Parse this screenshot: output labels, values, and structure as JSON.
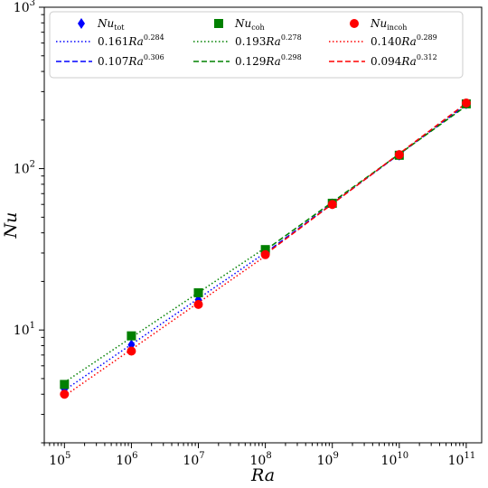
{
  "chart_data": {
    "type": "scatter",
    "title": "",
    "xlabel": "Ra",
    "ylabel": "Nu",
    "xscale": "log",
    "yscale": "log",
    "xlim": [
      50000,
      170000000000
    ],
    "ylim": [
      2,
      1000
    ],
    "x_ticks": [
      {
        "base": "10",
        "exp": "5"
      },
      {
        "base": "10",
        "exp": "6"
      },
      {
        "base": "10",
        "exp": "7"
      },
      {
        "base": "10",
        "exp": "8"
      },
      {
        "base": "10",
        "exp": "9"
      },
      {
        "base": "10",
        "exp": "10"
      },
      {
        "base": "10",
        "exp": "11"
      }
    ],
    "y_ticks": [
      {
        "base": "10",
        "exp": "1"
      },
      {
        "base": "10",
        "exp": "2"
      },
      {
        "base": "10",
        "exp": "3"
      }
    ],
    "legend_position": "top",
    "grid": false,
    "x": [
      100000,
      1000000,
      10000000,
      100000000,
      1000000000,
      10000000000,
      100000000000
    ],
    "series": [
      {
        "name": "Nu",
        "subscript": "tot",
        "marker": "diamond",
        "color": "#0000ff",
        "values": [
          4.3,
          8.1,
          15.4,
          30.3,
          60.5,
          121,
          252
        ]
      },
      {
        "name": "Nu",
        "subscript": "coh",
        "marker": "square",
        "color": "#008000",
        "values": [
          4.6,
          9.2,
          17.0,
          31.5,
          61.0,
          121,
          252
        ]
      },
      {
        "name": "Nu",
        "subscript": "incoh",
        "marker": "circle",
        "color": "#ff0000",
        "values": [
          4.0,
          7.4,
          14.4,
          29.3,
          60.0,
          122,
          255
        ]
      }
    ],
    "fits": [
      {
        "coef": "0.161",
        "base": "Ra",
        "exp": "0.284",
        "a": 0.161,
        "b": 0.284,
        "style": "dotted",
        "color": "#0000ff",
        "range": [
          100000,
          100000000
        ]
      },
      {
        "coef": "0.107",
        "base": "Ra",
        "exp": "0.306",
        "a": 0.107,
        "b": 0.306,
        "style": "dashed",
        "color": "#0000ff",
        "range": [
          100000000,
          100000000000
        ]
      },
      {
        "coef": "0.193",
        "base": "Ra",
        "exp": "0.278",
        "a": 0.193,
        "b": 0.278,
        "style": "dotted",
        "color": "#008000",
        "range": [
          100000,
          100000000
        ]
      },
      {
        "coef": "0.129",
        "base": "Ra",
        "exp": "0.298",
        "a": 0.129,
        "b": 0.298,
        "style": "dashed",
        "color": "#008000",
        "range": [
          100000000,
          100000000000
        ]
      },
      {
        "coef": "0.140",
        "base": "Ra",
        "exp": "0.289",
        "a": 0.14,
        "b": 0.289,
        "style": "dotted",
        "color": "#ff0000",
        "range": [
          100000,
          100000000
        ]
      },
      {
        "coef": "0.094",
        "base": "Ra",
        "exp": "0.312",
        "a": 0.094,
        "b": 0.312,
        "style": "dashed",
        "color": "#ff0000",
        "range": [
          100000000,
          100000000000
        ]
      }
    ]
  }
}
